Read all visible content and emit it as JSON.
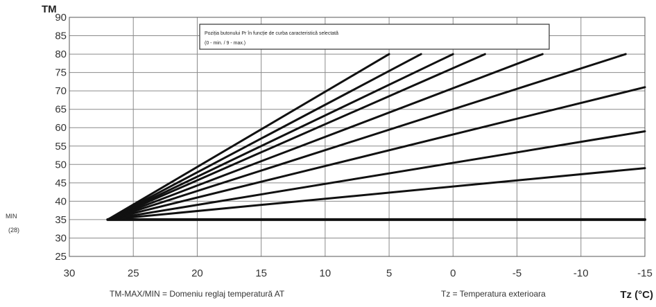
{
  "chart_data": {
    "type": "line",
    "y_title": "TM",
    "x_title": "Tz (°C)",
    "xlim": [
      30,
      -15
    ],
    "ylim": [
      25,
      90
    ],
    "x_ticks": [
      30,
      25,
      20,
      15,
      10,
      5,
      0,
      -5,
      -10,
      -15
    ],
    "y_ticks": [
      25,
      30,
      35,
      40,
      45,
      50,
      55,
      60,
      65,
      70,
      75,
      80,
      85,
      90
    ],
    "x_tick_labels": [
      "30",
      "25",
      "20",
      "15",
      "10",
      "5",
      "0",
      "-5",
      "-10",
      "-15"
    ],
    "y_tick_labels": [
      "25",
      "30",
      "35",
      "40",
      "45",
      "50",
      "55",
      "60",
      "65",
      "70",
      "75",
      "80",
      "85",
      "90"
    ],
    "min_label": "MIN",
    "min_value": "(28)",
    "legend_box": {
      "line1": "Poziția butonului Pr în funcție de curba caracteristică selectată",
      "line2": "(0 - min. / 9 - max.)"
    },
    "footnote_left": "TM-MAX/MIN =  Domeniu reglaj temperatură AT",
    "footnote_right": "Tz = Temperatura exterioara",
    "grid": true,
    "series": [
      {
        "x": [
          27,
          -15
        ],
        "y": [
          35,
          35
        ]
      },
      {
        "x": [
          27,
          -15
        ],
        "y": [
          35,
          49
        ]
      },
      {
        "x": [
          27,
          -15
        ],
        "y": [
          35,
          59
        ]
      },
      {
        "x": [
          27,
          -15
        ],
        "y": [
          35,
          71
        ]
      },
      {
        "x": [
          27,
          -13.5
        ],
        "y": [
          35,
          80
        ]
      },
      {
        "x": [
          27,
          -7
        ],
        "y": [
          35,
          80
        ]
      },
      {
        "x": [
          27,
          -2.5
        ],
        "y": [
          35,
          80
        ]
      },
      {
        "x": [
          27,
          0
        ],
        "y": [
          35,
          80
        ]
      },
      {
        "x": [
          27,
          2.5
        ],
        "y": [
          35,
          80
        ]
      },
      {
        "x": [
          27,
          5
        ],
        "y": [
          35,
          80
        ]
      }
    ]
  }
}
